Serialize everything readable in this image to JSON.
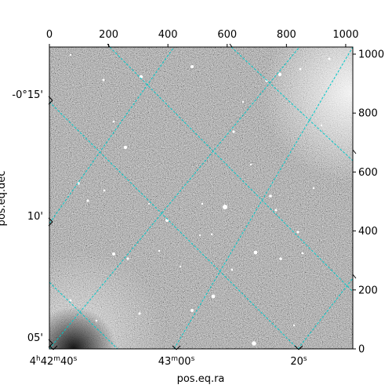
{
  "figure": {
    "xlabel": "pos.eq.ra",
    "ylabel": "pos.eq.dec",
    "colormap": "gray",
    "grid_color": "#00c8c8",
    "grid_style": "dashed"
  },
  "pixel_axes": {
    "top_ticks": [
      "0",
      "200",
      "400",
      "600",
      "800",
      "1000"
    ],
    "top_values": [
      0,
      200,
      400,
      600,
      800,
      1000
    ],
    "right_ticks": [
      "0",
      "200",
      "400",
      "600",
      "800",
      "1000"
    ],
    "right_values": [
      0,
      200,
      400,
      600,
      800,
      1000
    ],
    "x_range": [
      0,
      1024
    ],
    "y_range": [
      0,
      1024
    ]
  },
  "world_axes": {
    "ra_ticks": [
      {
        "label_main": "4",
        "sup1": "h",
        "mid1": "42",
        "sup2": "m",
        "mid2": "40",
        "sup3": "s"
      },
      {
        "label_main": "43",
        "sup1": "m",
        "mid1": "00",
        "sup2": "s",
        "mid2": "",
        "sup3": ""
      },
      {
        "label_main": "20",
        "sup1": "s",
        "mid1": "",
        "sup2": "",
        "mid2": "",
        "sup3": ""
      }
    ],
    "dec_ticks": [
      "-0°15'",
      "10'",
      "05'"
    ]
  }
}
